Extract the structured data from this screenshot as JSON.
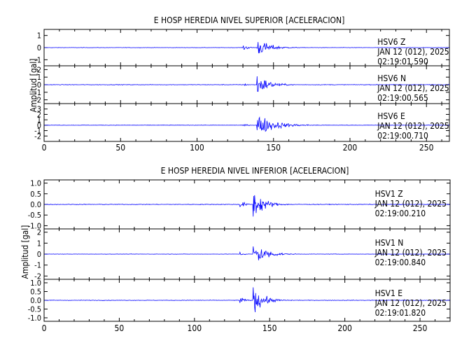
{
  "chart_data": [
    {
      "type": "line",
      "title": "E HOSP HEREDIA NIVEL SUPERIOR [ACELERACION]",
      "ylabel": "Amplitud [gal]",
      "xlim": [
        0,
        265
      ],
      "x_ticks": [
        0,
        50,
        100,
        150,
        200,
        250
      ],
      "line_color": "#0000ff",
      "panels": [
        {
          "station": "HSV6",
          "component": "Z",
          "date": "JAN 12 (012), 2025",
          "time": "02:19:01.590",
          "ylim": [
            -1.5,
            1.5
          ],
          "y_ticks": [
            -1,
            0,
            1
          ],
          "y_tick_labels": [
            "-1",
            "0",
            "1"
          ],
          "noise": 0.02,
          "p_onset": 130,
          "p_amp": 0.45,
          "s_onset": 139,
          "s_amp": 1.1,
          "decay": 0.13
        },
        {
          "station": "HSV6",
          "component": "N",
          "date": "JAN 12 (012), 2025",
          "time": "02:19:00.565",
          "ylim": [
            -2.5,
            2.5
          ],
          "y_ticks": [
            -2,
            -1,
            0,
            1,
            2
          ],
          "y_tick_labels": [
            "-2",
            "-1",
            "0",
            "1",
            "2"
          ],
          "noise": 0.05,
          "p_onset": 130,
          "p_amp": 0.3,
          "s_onset": 139,
          "s_amp": 2.1,
          "decay": 0.14
        },
        {
          "station": "HSV6",
          "component": "E",
          "date": "JAN 12 (012), 2025",
          "time": "02:19:00.710",
          "ylim": [
            -3,
            4
          ],
          "y_ticks": [
            -2,
            -1,
            0,
            1,
            2,
            3
          ],
          "y_tick_labels": [
            "-2",
            "-1",
            "0",
            "1",
            "2",
            "3"
          ],
          "noise": 0.05,
          "p_onset": 130,
          "p_amp": 0.4,
          "s_onset": 139,
          "s_amp": 3.0,
          "decay": 0.09
        }
      ]
    },
    {
      "type": "line",
      "title": "E HOSP HEREDIA NIVEL INFERIOR [ACELERACION]",
      "ylabel": "Amplitud [gal]",
      "xlim": [
        0,
        270
      ],
      "x_ticks": [
        0,
        50,
        100,
        150,
        200,
        250
      ],
      "line_color": "#0000ff",
      "panels": [
        {
          "station": "HSV1",
          "component": "Z",
          "date": "JAN 12 (012), 2025",
          "time": "02:19:00.210",
          "ylim": [
            -1.15,
            1.15
          ],
          "y_ticks": [
            -1.0,
            -0.5,
            0.0,
            0.5,
            1.0
          ],
          "y_tick_labels": [
            "-1.0",
            "-0.5",
            "0.0",
            "0.5",
            "1.0"
          ],
          "noise": 0.02,
          "p_onset": 130,
          "p_amp": 0.35,
          "s_onset": 139,
          "s_amp": 1.05,
          "decay": 0.15
        },
        {
          "station": "HSV1",
          "component": "N",
          "date": "JAN 12 (012), 2025",
          "time": "02:19:00.840",
          "ylim": [
            -2.3,
            2.3
          ],
          "y_ticks": [
            -2,
            -1,
            0,
            1,
            2
          ],
          "y_tick_labels": [
            "-2",
            "-1",
            "0",
            "1",
            "2"
          ],
          "noise": 0.02,
          "p_onset": 130,
          "p_amp": 0.3,
          "s_onset": 139,
          "s_amp": 2.0,
          "decay": 0.14
        },
        {
          "station": "HSV1",
          "component": "E",
          "date": "JAN 12 (012), 2025",
          "time": "02:19:01.820",
          "ylim": [
            -1.2,
            1.2
          ],
          "y_ticks": [
            -1.0,
            -0.5,
            0.0,
            0.5,
            1.0
          ],
          "y_tick_labels": [
            "-1.0",
            "-0.5",
            "0.0",
            "0.5",
            "1.0"
          ],
          "noise": 0.02,
          "p_onset": 130,
          "p_amp": 0.35,
          "s_onset": 139,
          "s_amp": 1.1,
          "decay": 0.15
        }
      ]
    }
  ]
}
